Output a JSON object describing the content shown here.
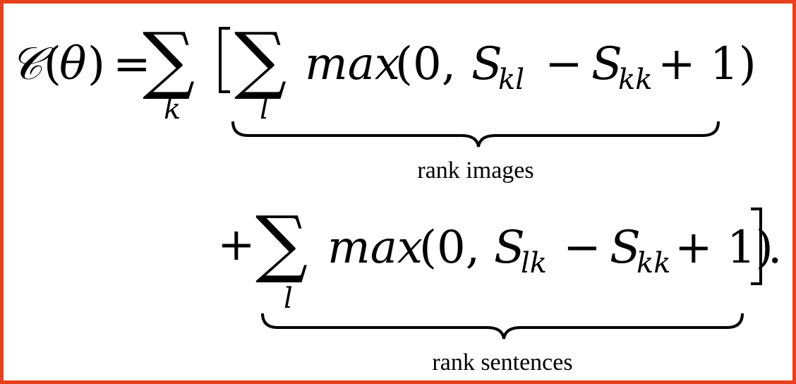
{
  "equation": {
    "lhs": {
      "script_c": "𝒞",
      "open_paren": "(",
      "theta": "θ",
      "close_paren": ")",
      "equals": "="
    },
    "outer_sum": {
      "symbol": "∑",
      "index": "k"
    },
    "open_bracket": "[",
    "term1": {
      "sum_symbol": "∑",
      "sum_index": "l",
      "func": "max",
      "args_open": "(0,",
      "S1": "S",
      "S1_sub": "kl",
      "minus": "−",
      "S2": "S",
      "S2_sub": "kk",
      "plus_one": "+ 1)",
      "brace_label": "rank images"
    },
    "term2": {
      "plus": "+",
      "sum_symbol": "∑",
      "sum_index": "l",
      "func": "max",
      "args_open": "(0,",
      "S1": "S",
      "S1_sub": "lk",
      "minus": "−",
      "S2": "S",
      "S2_sub": "kk",
      "plus_one": "+ 1)",
      "brace_label": "rank sentences"
    },
    "close_bracket": "]",
    "period": "."
  },
  "colors": {
    "border": "#e8401c",
    "ink": "#000000"
  }
}
